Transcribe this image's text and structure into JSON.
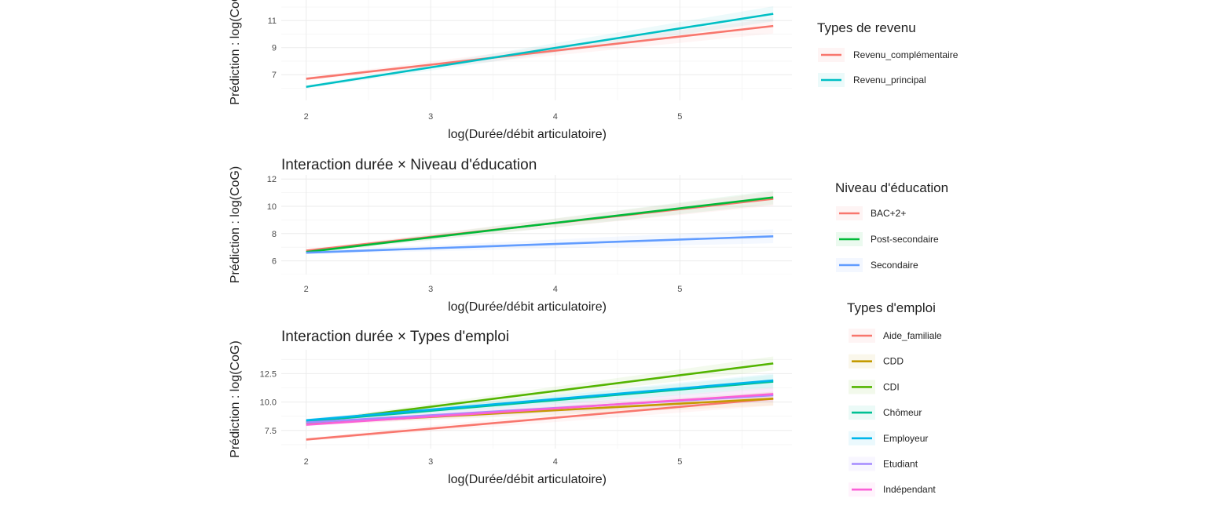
{
  "chart_data": [
    {
      "type": "line",
      "title": "",
      "xlabel": "log(Durée/débit articulatoire)",
      "ylabel": "Prédiction : log(CoG)",
      "xlim": [
        1.8,
        5.9
      ],
      "ylim": [
        5.1,
        13.1
      ],
      "x_ticks": [
        2,
        3,
        4,
        5
      ],
      "x_tick_labels": [
        "2",
        "3",
        "4",
        "5"
      ],
      "y_ticks": [
        7,
        9,
        11
      ],
      "y_tick_labels": [
        "7",
        "9",
        "11"
      ],
      "grid": true,
      "legend_title": "Types de revenu",
      "legend_position": "right",
      "series": [
        {
          "name": "Revenu_complémentaire",
          "color": "#F8766D",
          "x": [
            2,
            5.75
          ],
          "y": [
            6.7,
            10.6
          ]
        },
        {
          "name": "Revenu_principal",
          "color": "#00BFC4",
          "x": [
            2,
            5.75
          ],
          "y": [
            6.1,
            11.5
          ]
        }
      ]
    },
    {
      "type": "line",
      "title": "Interaction durée × Niveau d'éducation",
      "xlabel": "log(Durée/débit articulatoire)",
      "ylabel": "Prédiction : log(CoG)",
      "xlim": [
        1.8,
        5.9
      ],
      "ylim": [
        5.0,
        12.3
      ],
      "x_ticks": [
        2,
        3,
        4,
        5
      ],
      "x_tick_labels": [
        "2",
        "3",
        "4",
        "5"
      ],
      "y_ticks": [
        6,
        8,
        10,
        12
      ],
      "y_tick_labels": [
        "6",
        "8",
        "10",
        "12"
      ],
      "grid": true,
      "legend_title": "Niveau d'éducation",
      "legend_position": "right",
      "series": [
        {
          "name": "BAC+2+",
          "color": "#F8766D",
          "x": [
            2,
            5.75
          ],
          "y": [
            6.75,
            10.55
          ]
        },
        {
          "name": "Post-secondaire",
          "color": "#00BA38",
          "x": [
            2,
            5.75
          ],
          "y": [
            6.65,
            10.65
          ]
        },
        {
          "name": "Secondaire",
          "color": "#619CFF",
          "x": [
            2,
            5.75
          ],
          "y": [
            6.6,
            7.8
          ]
        }
      ]
    },
    {
      "type": "line",
      "title": "Interaction durée × Types d'emploi",
      "xlabel": "log(Durée/débit articulatoire)",
      "ylabel": "Prédiction : log(CoG)",
      "xlim": [
        1.8,
        5.9
      ],
      "ylim": [
        5.9,
        14.6
      ],
      "x_ticks": [
        2,
        3,
        4,
        5
      ],
      "x_tick_labels": [
        "2",
        "3",
        "4",
        "5"
      ],
      "y_ticks": [
        7.5,
        10.0,
        12.5
      ],
      "y_tick_labels": [
        "7.5",
        "10.0",
        "12.5"
      ],
      "grid": true,
      "legend_title": "Types d'emploi",
      "legend_position": "right",
      "series": [
        {
          "name": "Aide_familiale",
          "color": "#F8766D",
          "x": [
            2,
            5.75
          ],
          "y": [
            6.7,
            10.3
          ]
        },
        {
          "name": "CDD",
          "color": "#C49A00",
          "x": [
            2,
            5.75
          ],
          "y": [
            8.1,
            10.3
          ]
        },
        {
          "name": "CDI",
          "color": "#53B400",
          "x": [
            2,
            5.75
          ],
          "y": [
            8.2,
            13.4
          ]
        },
        {
          "name": "Chômeur",
          "color": "#00C094",
          "x": [
            2,
            5.75
          ],
          "y": [
            8.3,
            11.8
          ]
        },
        {
          "name": "Employeur",
          "color": "#00B6EB",
          "x": [
            2,
            5.75
          ],
          "y": [
            8.4,
            11.9
          ]
        },
        {
          "name": "Etudiant",
          "color": "#A58AFF",
          "x": [
            2,
            5.75
          ],
          "y": [
            8.2,
            10.6
          ]
        },
        {
          "name": "Indépendant",
          "color": "#FB61D7",
          "x": [
            2,
            5.75
          ],
          "y": [
            8.0,
            10.7
          ]
        }
      ]
    }
  ]
}
